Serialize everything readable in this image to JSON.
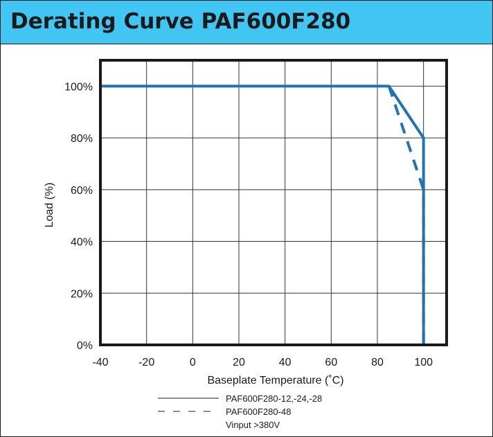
{
  "header": {
    "title": "Derating Curve PAF600F280"
  },
  "colors": {
    "header_bg": "#41c6f3",
    "curve": "#1f73b4",
    "grid": "#333333",
    "frame": "#1a1a1a"
  },
  "chart_data": {
    "type": "line",
    "title": "Derating Curve PAF600F280",
    "xlabel": "Baseplate Temperature (˚C)",
    "ylabel": "Load (%)",
    "xlim": [
      -40,
      110
    ],
    "ylim": [
      0,
      110
    ],
    "x_ticks": [
      -40,
      -20,
      0,
      20,
      40,
      60,
      80,
      100
    ],
    "x_tick_labels": [
      "-40",
      "-20",
      "0",
      "20",
      "40",
      "60",
      "80",
      "100"
    ],
    "y_ticks": [
      0,
      20,
      40,
      60,
      80,
      100
    ],
    "y_tick_labels": [
      "0%",
      "20%",
      "40%",
      "60%",
      "80%",
      "100%"
    ],
    "grid": true,
    "legend_position": "bottom-center",
    "series": [
      {
        "name": "PAF600F280-12,-24,-28",
        "style": "solid",
        "x": [
          -40,
          85,
          100,
          100
        ],
        "y": [
          100,
          100,
          80,
          0
        ]
      },
      {
        "name": "PAF600F280-48",
        "style": "dashed",
        "x": [
          85,
          100,
          100
        ],
        "y": [
          100,
          60,
          0
        ]
      }
    ],
    "legend_note": "Vinput >380V"
  }
}
